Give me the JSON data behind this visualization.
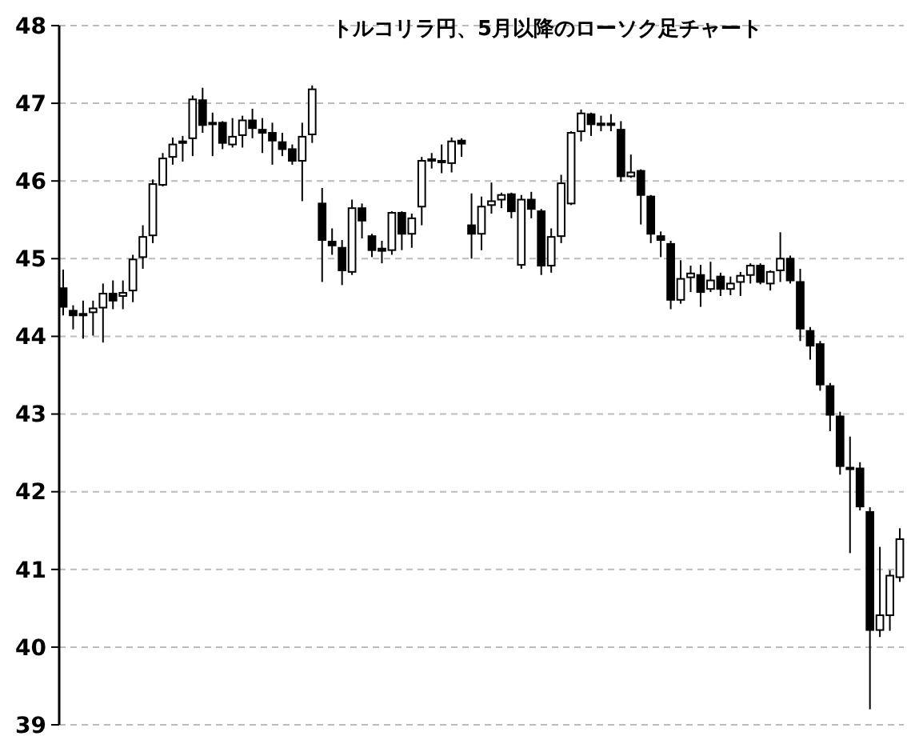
{
  "chart_data": {
    "type": "candlestick",
    "title": "トルコリラ円、5月以降のローソク足チャート",
    "categories": [
      null,
      null,
      null,
      null,
      null,
      null,
      null,
      null,
      null,
      null,
      null,
      null,
      null,
      null,
      null,
      null,
      null,
      null,
      null,
      null,
      null,
      null,
      null,
      null,
      null,
      null,
      null,
      null,
      null,
      null,
      null,
      null,
      null,
      null,
      null,
      null,
      null,
      null,
      null,
      null,
      null,
      null,
      null,
      null,
      null,
      null,
      null,
      null,
      null,
      null,
      null,
      null,
      null,
      null,
      null,
      null,
      null,
      null,
      null,
      null,
      null,
      null,
      null,
      null,
      null,
      null,
      null,
      null,
      null,
      null,
      null,
      null,
      null,
      null,
      null,
      null,
      null,
      null,
      null,
      null,
      null,
      null,
      null,
      null,
      null
    ],
    "ohlc": [
      [
        44.62,
        44.86,
        44.27,
        44.38
      ],
      [
        44.33,
        44.4,
        44.09,
        44.27
      ],
      [
        44.29,
        44.46,
        43.97,
        44.27
      ],
      [
        44.31,
        44.46,
        44.01,
        44.36
      ],
      [
        44.37,
        44.68,
        43.92,
        44.55
      ],
      [
        44.55,
        44.72,
        44.35,
        44.46
      ],
      [
        44.52,
        44.72,
        44.35,
        44.56
      ],
      [
        44.59,
        45.05,
        44.44,
        44.99
      ],
      [
        45.02,
        45.43,
        44.87,
        45.28
      ],
      [
        45.3,
        46.02,
        45.2,
        45.96
      ],
      [
        45.95,
        46.36,
        45.93,
        46.29
      ],
      [
        46.31,
        46.56,
        46.21,
        46.47
      ],
      [
        46.5,
        46.58,
        46.25,
        46.51
      ],
      [
        46.55,
        47.1,
        46.32,
        47.05
      ],
      [
        47.04,
        47.2,
        46.62,
        46.72
      ],
      [
        46.75,
        46.88,
        46.32,
        46.73
      ],
      [
        46.75,
        46.77,
        46.41,
        46.49
      ],
      [
        46.47,
        46.81,
        46.43,
        46.57
      ],
      [
        46.59,
        46.84,
        46.43,
        46.78
      ],
      [
        46.78,
        46.93,
        46.55,
        46.68
      ],
      [
        46.66,
        46.81,
        46.36,
        46.62
      ],
      [
        46.62,
        46.75,
        46.21,
        46.52
      ],
      [
        46.5,
        46.62,
        46.32,
        46.41
      ],
      [
        46.41,
        46.47,
        46.21,
        46.26
      ],
      [
        46.26,
        46.75,
        45.74,
        46.57
      ],
      [
        46.6,
        47.23,
        46.49,
        47.18
      ],
      [
        45.71,
        45.91,
        44.7,
        45.24
      ],
      [
        45.22,
        45.39,
        45.05,
        45.17
      ],
      [
        45.14,
        45.24,
        44.66,
        44.85
      ],
      [
        44.83,
        45.76,
        44.79,
        45.65
      ],
      [
        45.65,
        45.71,
        45.26,
        45.49
      ],
      [
        45.29,
        45.32,
        45.02,
        45.11
      ],
      [
        45.13,
        45.23,
        44.94,
        45.1
      ],
      [
        45.11,
        45.61,
        45.05,
        45.59
      ],
      [
        45.59,
        45.61,
        45.11,
        45.32
      ],
      [
        45.32,
        45.58,
        45.14,
        45.52
      ],
      [
        45.67,
        46.31,
        45.43,
        46.26
      ],
      [
        46.26,
        46.36,
        46.16,
        46.28
      ],
      [
        46.26,
        46.47,
        46.1,
        46.25
      ],
      [
        46.23,
        46.56,
        46.11,
        46.51
      ],
      [
        46.52,
        46.55,
        46.31,
        46.48
      ],
      [
        45.43,
        45.84,
        45.0,
        45.32
      ],
      [
        45.32,
        45.8,
        45.11,
        45.67
      ],
      [
        45.69,
        45.98,
        45.58,
        45.74
      ],
      [
        45.76,
        45.85,
        45.65,
        45.82
      ],
      [
        45.83,
        45.85,
        45.52,
        45.61
      ],
      [
        44.92,
        45.82,
        44.87,
        45.76
      ],
      [
        45.76,
        45.86,
        45.52,
        45.64
      ],
      [
        45.61,
        45.64,
        44.79,
        44.91
      ],
      [
        44.91,
        45.39,
        44.82,
        45.28
      ],
      [
        45.29,
        46.08,
        45.2,
        45.97
      ],
      [
        45.71,
        46.64,
        45.69,
        46.62
      ],
      [
        46.64,
        46.92,
        46.51,
        46.87
      ],
      [
        46.86,
        46.88,
        46.58,
        46.73
      ],
      [
        46.74,
        46.84,
        46.64,
        46.73
      ],
      [
        46.74,
        46.86,
        46.64,
        46.72
      ],
      [
        46.66,
        46.77,
        45.99,
        46.06
      ],
      [
        46.06,
        46.34,
        46.04,
        46.11
      ],
      [
        46.13,
        46.15,
        45.44,
        45.82
      ],
      [
        45.8,
        45.82,
        45.2,
        45.32
      ],
      [
        45.29,
        45.35,
        45.02,
        45.24
      ],
      [
        45.19,
        45.23,
        44.35,
        44.47
      ],
      [
        44.47,
        44.98,
        44.42,
        44.74
      ],
      [
        44.76,
        44.91,
        44.57,
        44.81
      ],
      [
        44.79,
        44.92,
        44.38,
        44.57
      ],
      [
        44.61,
        44.96,
        44.57,
        44.72
      ],
      [
        44.77,
        44.82,
        44.52,
        44.61
      ],
      [
        44.61,
        44.77,
        44.53,
        44.68
      ],
      [
        44.7,
        44.83,
        44.52,
        44.78
      ],
      [
        44.79,
        44.94,
        44.68,
        44.91
      ],
      [
        44.91,
        44.94,
        44.67,
        44.7
      ],
      [
        44.68,
        44.85,
        44.59,
        44.83
      ],
      [
        44.85,
        45.34,
        44.7,
        45.0
      ],
      [
        45.0,
        45.04,
        44.68,
        44.72
      ],
      [
        44.7,
        44.87,
        43.94,
        44.1
      ],
      [
        44.07,
        44.12,
        43.7,
        43.88
      ],
      [
        43.9,
        43.94,
        43.3,
        43.38
      ],
      [
        43.36,
        43.4,
        42.78,
        42.99
      ],
      [
        42.97,
        43.03,
        42.22,
        42.33
      ],
      [
        42.31,
        42.71,
        41.21,
        42.3
      ],
      [
        42.3,
        42.38,
        41.76,
        41.81
      ],
      [
        41.74,
        41.8,
        39.2,
        40.22
      ],
      [
        40.22,
        41.29,
        40.13,
        40.41
      ],
      [
        40.41,
        40.99,
        40.21,
        40.92
      ],
      [
        40.9,
        41.53,
        40.84,
        41.39
      ]
    ],
    "ylim": [
      39,
      48
    ],
    "yticks": [
      39,
      40,
      41,
      42,
      43,
      44,
      45,
      46,
      47,
      48
    ],
    "grid": "y",
    "tick_labels": "y"
  }
}
